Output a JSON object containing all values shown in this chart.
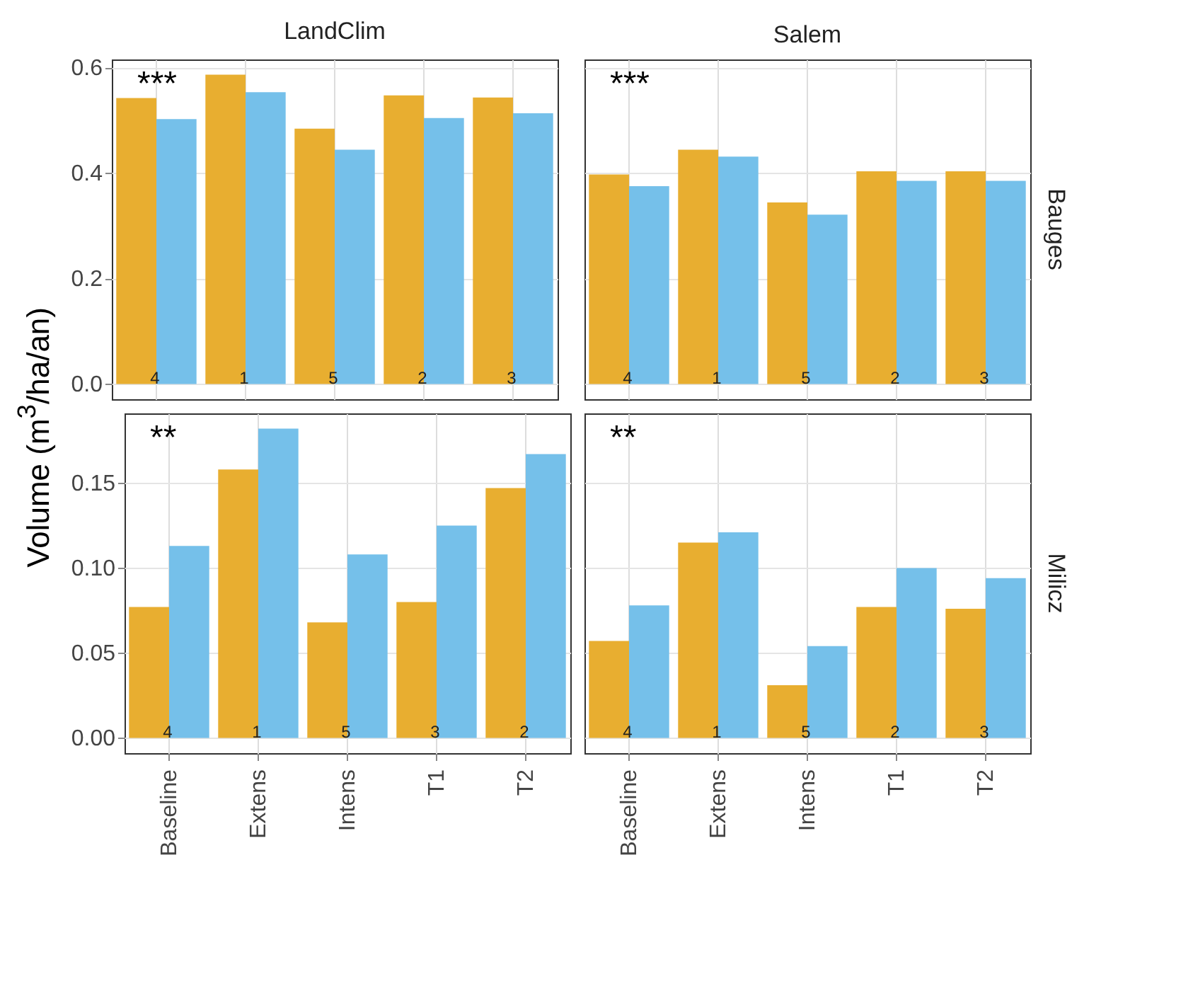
{
  "chart_data": [
    {
      "type": "bar",
      "title": "LandClim",
      "ylabel": "Volume (m$^{3}$/ha/an)",
      "categories": [
        "Baseline",
        "Extens",
        "Intens",
        "T1",
        "T2"
      ],
      "series": [
        {
          "color": "#e8ae30",
          "values": [
            0.542,
            0.586,
            0.484,
            0.547,
            0.543
          ]
        },
        {
          "color": "#75c0ea",
          "values": [
            0.502,
            0.553,
            0.444,
            0.504,
            0.513
          ]
        }
      ],
      "ylim": [
        -0.029,
        0.615
      ],
      "yticks": [
        {
          "value": 0,
          "label": "0.0"
        },
        {
          "value": 0.2,
          "label": "0.2"
        },
        {
          "value": 0.4,
          "label": "0.4"
        },
        {
          "value": 0.6,
          "label": "0.6"
        }
      ],
      "grid": true,
      "tick_labels": "y",
      "annotations": [
        "***",
        {
          "text": "4",
          "x": "Baseline"
        },
        {
          "text": "1",
          "x": "Extens"
        },
        {
          "text": "5",
          "x": "Intens"
        },
        {
          "text": "2",
          "x": "T1"
        },
        {
          "text": "3",
          "x": "T2"
        }
      ]
    },
    {
      "type": "bar",
      "title": "Salem",
      "y2label": "Bauges",
      "categories": [
        "Baseline",
        "Extens",
        "Intens",
        "T1",
        "T2"
      ],
      "series": [
        {
          "color": "#e8ae30",
          "values": [
            0.397,
            0.444,
            0.344,
            0.403,
            0.403
          ]
        },
        {
          "color": "#75c0ea",
          "values": [
            0.375,
            0.431,
            0.321,
            0.385,
            0.385
          ]
        }
      ],
      "ylim": [
        -0.029,
        0.615
      ],
      "yticks": [
        0,
        0.2,
        0.4,
        0.6
      ],
      "grid": true,
      "tick_labels": false,
      "annotations": [
        "***",
        {
          "text": "4",
          "x": "Baseline"
        },
        {
          "text": "1",
          "x": "Extens"
        },
        {
          "text": "5",
          "x": "Intens"
        },
        {
          "text": "2",
          "x": "T1"
        },
        {
          "text": "3",
          "x": "T2"
        }
      ]
    },
    {
      "type": "bar",
      "categories": [
        "Baseline",
        "Extens",
        "Intens",
        "T1",
        "T2"
      ],
      "series": [
        {
          "color": "#e8ae30",
          "values": [
            0.077,
            0.158,
            0.068,
            0.08,
            0.147
          ]
        },
        {
          "color": "#75c0ea",
          "values": [
            0.113,
            0.182,
            0.108,
            0.125,
            0.167
          ]
        }
      ],
      "ylim": [
        -0.009,
        0.191
      ],
      "yticks": [
        {
          "value": 0,
          "label": "0.00"
        },
        {
          "value": 0.05,
          "label": "0.05"
        },
        {
          "value": 0.1,
          "label": "0.10"
        },
        {
          "value": 0.15,
          "label": "0.15"
        }
      ],
      "grid": true,
      "annotations": [
        "**",
        {
          "text": "4",
          "x": "Baseline"
        },
        {
          "text": "1",
          "x": "Extens"
        },
        {
          "text": "5",
          "x": "Intens"
        },
        {
          "text": "3",
          "x": "T1"
        },
        {
          "text": "2",
          "x": "T2"
        }
      ]
    },
    {
      "type": "bar",
      "y2label": "Milicz",
      "categories": [
        "Baseline",
        "Extens",
        "Intens",
        "T1",
        "T2"
      ],
      "series": [
        {
          "color": "#e8ae30",
          "values": [
            0.057,
            0.115,
            0.031,
            0.077,
            0.076
          ]
        },
        {
          "color": "#75c0ea",
          "values": [
            0.078,
            0.121,
            0.054,
            0.1,
            0.094
          ]
        }
      ],
      "ylim": [
        -0.009,
        0.191
      ],
      "yticks": [
        0,
        0.05,
        0.1,
        0.15
      ],
      "grid": true,
      "tick_labels": "x",
      "annotations": [
        "**",
        {
          "text": "4",
          "x": "Baseline"
        },
        {
          "text": "1",
          "x": "Extens"
        },
        {
          "text": "5",
          "x": "Intens"
        },
        {
          "text": "2",
          "x": "T1"
        },
        {
          "text": "3",
          "x": "T2"
        }
      ]
    }
  ]
}
